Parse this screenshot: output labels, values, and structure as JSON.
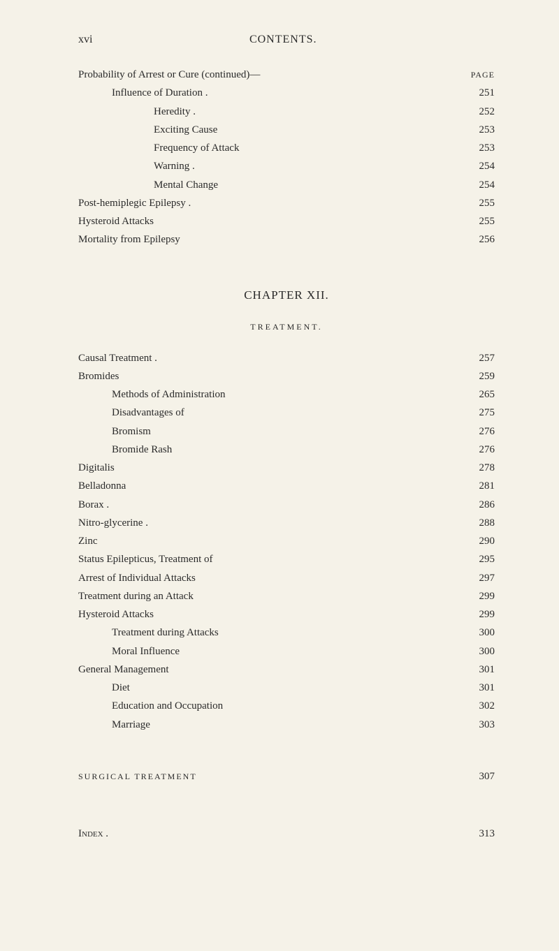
{
  "header": {
    "page_num": "xvi",
    "title": "CONTENTS."
  },
  "page_label": "PAGE",
  "section1": {
    "continued_heading": "Probability of Arrest or Cure (continued)—",
    "items": [
      {
        "label": "Influence of Duration .",
        "page": "251",
        "indent": 1
      },
      {
        "label": "Heredity .",
        "page": "252",
        "indent": 2
      },
      {
        "label": "Exciting Cause",
        "page": "253",
        "indent": 2
      },
      {
        "label": "Frequency of Attack",
        "page": "253",
        "indent": 2
      },
      {
        "label": "Warning .",
        "page": "254",
        "indent": 2
      },
      {
        "label": "Mental Change",
        "page": "254",
        "indent": 2
      },
      {
        "label": "Post-hemiplegic Epilepsy .",
        "page": "255",
        "indent": 0
      },
      {
        "label": "Hysteroid Attacks",
        "page": "255",
        "indent": 0
      },
      {
        "label": "Mortality from Epilepsy",
        "page": "256",
        "indent": 0
      }
    ]
  },
  "chapter": {
    "title": "CHAPTER XII.",
    "subtitle": "TREATMENT."
  },
  "section2": {
    "items": [
      {
        "label": "Causal Treatment .",
        "page": "257",
        "indent": 0
      },
      {
        "label": "Bromides",
        "page": "259",
        "indent": 0
      },
      {
        "label": "Methods of Administration",
        "page": "265",
        "indent": 1
      },
      {
        "label": "Disadvantages of",
        "page": "275",
        "indent": 1
      },
      {
        "label": "Bromism",
        "page": "276",
        "indent": 1
      },
      {
        "label": "Bromide Rash",
        "page": "276",
        "indent": 1
      },
      {
        "label": "Digitalis",
        "page": "278",
        "indent": 0
      },
      {
        "label": "Belladonna",
        "page": "281",
        "indent": 0
      },
      {
        "label": "Borax .",
        "page": "286",
        "indent": 0
      },
      {
        "label": "Nitro-glycerine .",
        "page": "288",
        "indent": 0
      },
      {
        "label": "Zinc",
        "page": "290",
        "indent": 0
      },
      {
        "label": "Status Epilepticus, Treatment of",
        "page": "295",
        "indent": 0
      },
      {
        "label": "Arrest of Individual Attacks",
        "page": "297",
        "indent": 0
      },
      {
        "label": "Treatment during an Attack",
        "page": "299",
        "indent": 0
      },
      {
        "label": "Hysteroid Attacks",
        "page": "299",
        "indent": 0
      },
      {
        "label": "Treatment during Attacks",
        "page": "300",
        "indent": 1
      },
      {
        "label": "Moral Influence",
        "page": "300",
        "indent": 1
      },
      {
        "label": "General Management",
        "page": "301",
        "indent": 0
      },
      {
        "label": "Diet",
        "page": "301",
        "indent": 1
      },
      {
        "label": "Education and Occupation",
        "page": "302",
        "indent": 1
      },
      {
        "label": "Marriage",
        "page": "303",
        "indent": 1
      }
    ]
  },
  "surgical": {
    "label": "SURGICAL TREATMENT",
    "page": "307"
  },
  "index": {
    "label": "Index .",
    "page": "313"
  }
}
